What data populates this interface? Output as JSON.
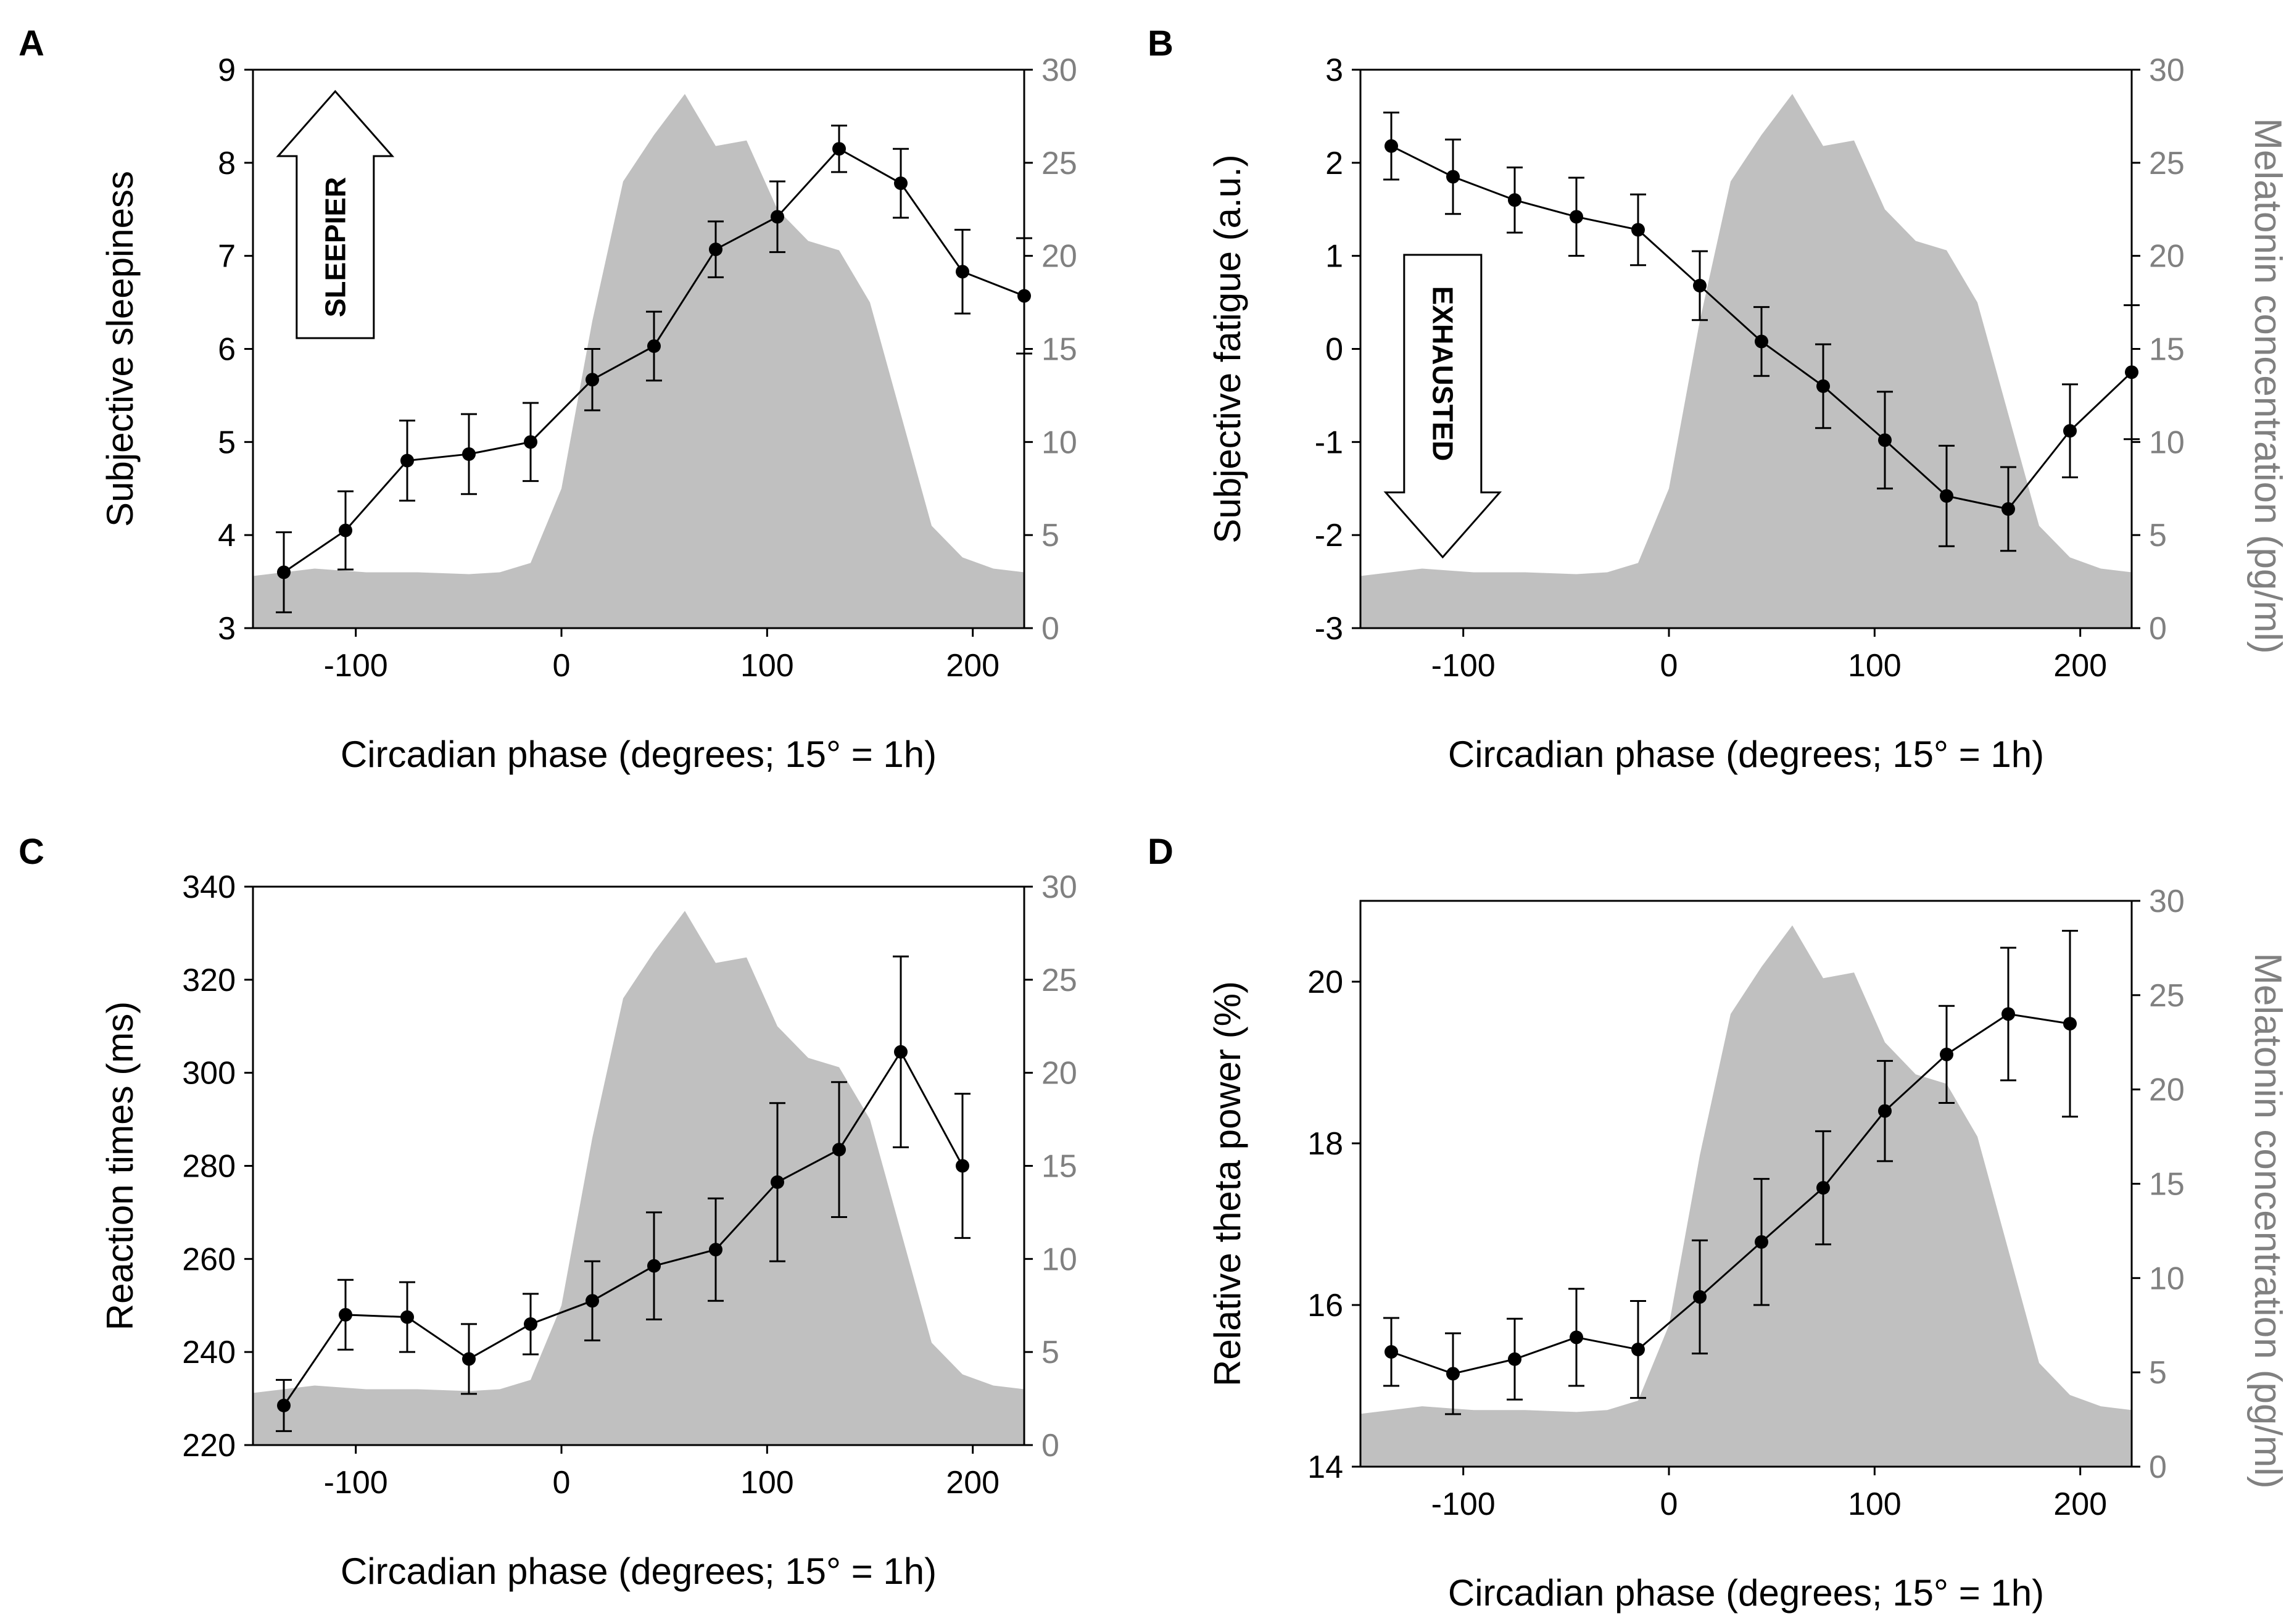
{
  "colors": {
    "axis": "#000000",
    "right_axis": "#808080",
    "melatonin_fill": "#c0c0c0",
    "line": "#000000"
  },
  "x_axis": {
    "label": "Circadian phase (degrees; 15° = 1h)",
    "ticks": [
      -100,
      0,
      100,
      200
    ],
    "xlim": [
      -150,
      225
    ]
  },
  "melatonin": {
    "label": "Melatonin concentration (pg/ml)",
    "ylim": [
      0,
      30
    ],
    "ticks": [
      0,
      5,
      10,
      15,
      20,
      25,
      30
    ],
    "x": [
      -150,
      -120,
      -95,
      -70,
      -45,
      -30,
      -15,
      0,
      15,
      30,
      45,
      60,
      75,
      90,
      105,
      120,
      135,
      150,
      165,
      180,
      195,
      210,
      225
    ],
    "y": [
      2.8,
      3.2,
      3.0,
      3.0,
      2.9,
      3.0,
      3.5,
      7.5,
      16.5,
      24.0,
      26.5,
      28.7,
      25.9,
      26.2,
      22.5,
      20.8,
      20.3,
      17.5,
      11.5,
      5.5,
      3.8,
      3.2,
      3.0
    ]
  },
  "chart_data": [
    {
      "panel": "A",
      "type": "line",
      "ylabel": "Subjective sleepiness",
      "ylim": [
        3,
        9
      ],
      "yticks": [
        3,
        4,
        5,
        6,
        7,
        8,
        9
      ],
      "annotation": "SLEEPIER",
      "annotation_direction": "up",
      "x": [
        -135,
        -105,
        -75,
        -45,
        -15,
        15,
        45,
        75,
        105,
        135,
        165,
        195,
        225
      ],
      "y": [
        3.6,
        4.05,
        4.8,
        4.87,
        5.0,
        5.67,
        6.03,
        7.07,
        7.42,
        8.15,
        7.78,
        6.83,
        6.57
      ],
      "err": [
        0.43,
        0.42,
        0.43,
        0.43,
        0.42,
        0.33,
        0.37,
        0.3,
        0.38,
        0.25,
        0.37,
        0.45,
        0.62
      ],
      "right_ylabel": ""
    },
    {
      "panel": "B",
      "type": "line",
      "ylabel": "Subjective fatigue (a.u.)",
      "ylim": [
        -3,
        3
      ],
      "yticks": [
        -3,
        -2,
        -1,
        0,
        1,
        2,
        3
      ],
      "annotation": "EXHAUSTED",
      "annotation_direction": "down",
      "x": [
        -135,
        -105,
        -75,
        -45,
        -15,
        15,
        45,
        75,
        105,
        135,
        165,
        195,
        225
      ],
      "y": [
        2.18,
        1.85,
        1.6,
        1.42,
        1.28,
        0.68,
        0.08,
        -0.4,
        -0.98,
        -1.58,
        -1.72,
        -0.88,
        -0.25
      ],
      "err": [
        0.36,
        0.4,
        0.35,
        0.42,
        0.38,
        0.37,
        0.37,
        0.45,
        0.52,
        0.54,
        0.45,
        0.5,
        0.72
      ],
      "right_ylabel": "Melatonin concentration (pg/ml)"
    },
    {
      "panel": "C",
      "type": "line",
      "ylabel": "Reaction times (ms)",
      "ylim": [
        220,
        340
      ],
      "yticks": [
        220,
        240,
        260,
        280,
        300,
        320,
        340
      ],
      "annotation": "",
      "annotation_direction": "",
      "x": [
        -135,
        -105,
        -75,
        -45,
        -15,
        15,
        45,
        75,
        105,
        135,
        165,
        195
      ],
      "y": [
        228.5,
        248,
        247.5,
        238.5,
        246,
        251,
        258.5,
        262,
        276.5,
        283.5,
        304.5,
        280
      ],
      "err": [
        5.5,
        7.5,
        7.5,
        7.5,
        6.5,
        8.5,
        11.5,
        11,
        17,
        14.5,
        20.5,
        15.5
      ],
      "right_ylabel": ""
    },
    {
      "panel": "D",
      "type": "line",
      "ylabel": "Relative theta power (%)",
      "ylim": [
        14,
        21
      ],
      "yticks": [
        14,
        16,
        18,
        20
      ],
      "annotation": "",
      "annotation_direction": "",
      "x": [
        -135,
        -105,
        -75,
        -45,
        -15,
        15,
        45,
        75,
        105,
        135,
        165,
        195
      ],
      "y": [
        15.42,
        15.15,
        15.33,
        15.6,
        15.45,
        16.1,
        16.78,
        17.45,
        18.4,
        19.1,
        19.6,
        19.48
      ],
      "err": [
        0.42,
        0.5,
        0.5,
        0.6,
        0.6,
        0.7,
        0.78,
        0.7,
        0.62,
        0.6,
        0.82,
        1.15
      ],
      "right_ylabel": "Melatonin concentration (pg/ml)"
    }
  ]
}
